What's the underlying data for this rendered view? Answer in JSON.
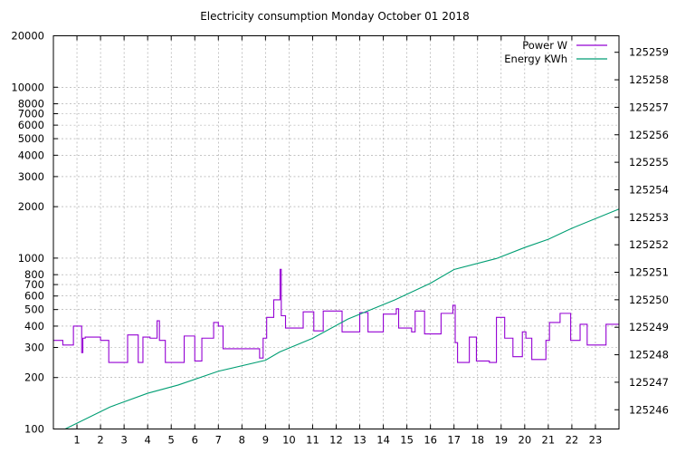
{
  "chart_data": {
    "type": "line",
    "title": "Electricity consumption Monday October 01 2018",
    "xlim": [
      0,
      24
    ],
    "x_ticks": [
      1,
      2,
      3,
      4,
      5,
      6,
      7,
      8,
      9,
      10,
      11,
      12,
      13,
      14,
      15,
      16,
      17,
      18,
      19,
      20,
      21,
      22,
      23
    ],
    "y_left": {
      "scale": "log",
      "lim": [
        100,
        20000
      ],
      "ticks": [
        100,
        200,
        300,
        400,
        500,
        600,
        700,
        800,
        1000,
        2000,
        3000,
        4000,
        5000,
        6000,
        7000,
        8000,
        10000,
        20000
      ],
      "labels": [
        "100",
        "200",
        "300",
        "400",
        "500",
        "600",
        "700",
        "800",
        "1000",
        "2000",
        "3000",
        "4000",
        "5000",
        "6000",
        "7000",
        "8000",
        "10000",
        "20000"
      ]
    },
    "y_right": {
      "scale": "linear",
      "lim": [
        125245.3,
        125259.6
      ],
      "ticks": [
        125246,
        125247,
        125248,
        125249,
        125250,
        125251,
        125252,
        125253,
        125254,
        125255,
        125256,
        125257,
        125258,
        125259
      ],
      "labels": [
        "125246",
        "125247",
        "125248",
        "125249",
        "125250",
        "125251",
        "125252",
        "125253",
        "125254",
        "125255",
        "125256",
        "125257",
        "125258",
        "125259"
      ]
    },
    "grid": true,
    "legend_position": "top-right",
    "series": [
      {
        "name": "Power W",
        "color": "#9400d3",
        "axis": "left",
        "step": true,
        "points": [
          [
            0,
            330
          ],
          [
            0.4,
            310
          ],
          [
            0.85,
            400
          ],
          [
            1.2,
            280
          ],
          [
            1.25,
            340
          ],
          [
            1.35,
            345
          ],
          [
            2.0,
            330
          ],
          [
            2.35,
            245
          ],
          [
            3.15,
            355
          ],
          [
            3.6,
            245
          ],
          [
            3.8,
            345
          ],
          [
            4.1,
            340
          ],
          [
            4.4,
            430
          ],
          [
            4.5,
            330
          ],
          [
            4.75,
            245
          ],
          [
            5.55,
            350
          ],
          [
            6.0,
            250
          ],
          [
            6.3,
            340
          ],
          [
            6.8,
            420
          ],
          [
            7.0,
            400
          ],
          [
            7.2,
            295
          ],
          [
            8.75,
            260
          ],
          [
            8.9,
            340
          ],
          [
            9.05,
            450
          ],
          [
            9.35,
            570
          ],
          [
            9.62,
            860
          ],
          [
            9.67,
            460
          ],
          [
            9.85,
            390
          ],
          [
            10.6,
            485
          ],
          [
            11.05,
            375
          ],
          [
            11.45,
            490
          ],
          [
            12.25,
            370
          ],
          [
            13.0,
            480
          ],
          [
            13.35,
            370
          ],
          [
            14.0,
            470
          ],
          [
            14.55,
            505
          ],
          [
            14.65,
            390
          ],
          [
            15.2,
            370
          ],
          [
            15.35,
            490
          ],
          [
            15.75,
            360
          ],
          [
            16.45,
            475
          ],
          [
            16.95,
            530
          ],
          [
            17.05,
            320
          ],
          [
            17.15,
            245
          ],
          [
            17.65,
            345
          ],
          [
            17.95,
            250
          ],
          [
            18.5,
            245
          ],
          [
            18.8,
            450
          ],
          [
            19.15,
            340
          ],
          [
            19.5,
            265
          ],
          [
            19.9,
            370
          ],
          [
            20.05,
            340
          ],
          [
            20.3,
            255
          ],
          [
            20.9,
            330
          ],
          [
            21.05,
            420
          ],
          [
            21.5,
            475
          ],
          [
            21.95,
            330
          ],
          [
            22.35,
            410
          ],
          [
            22.65,
            310
          ],
          [
            23.45,
            410
          ],
          [
            24,
            410
          ]
        ]
      },
      {
        "name": "Energy KWh",
        "color": "#009e73",
        "axis": "right",
        "step": false,
        "points": [
          [
            0.5,
            125245.3
          ],
          [
            2.4,
            125246.1
          ],
          [
            4.0,
            125246.6
          ],
          [
            5.3,
            125246.9
          ],
          [
            7.0,
            125247.4
          ],
          [
            9.0,
            125247.8
          ],
          [
            9.6,
            125248.1
          ],
          [
            11.0,
            125248.6
          ],
          [
            12.5,
            125249.3
          ],
          [
            14.5,
            125250.0
          ],
          [
            16.0,
            125250.6
          ],
          [
            17.0,
            125251.1
          ],
          [
            18.8,
            125251.5
          ],
          [
            20.0,
            125251.9
          ],
          [
            21.0,
            125252.2
          ],
          [
            22.0,
            125252.6
          ],
          [
            24.0,
            125253.3
          ]
        ]
      }
    ]
  }
}
